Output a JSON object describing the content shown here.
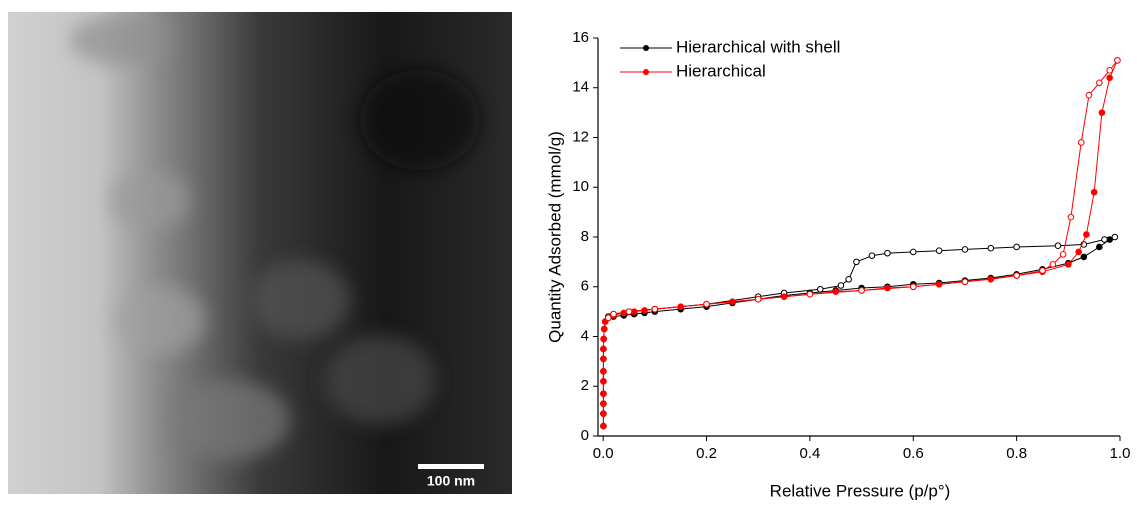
{
  "image": {
    "scale_bar_label": "100 nm"
  },
  "chart_data": {
    "type": "line",
    "x_label": "Relative Pressure (p/p°)",
    "y_label": "Quantity Adsorbed (mmol/g)",
    "xlim": [
      -0.01,
      1.0
    ],
    "ylim": [
      0,
      16
    ],
    "xticks": [
      {
        "value": 0,
        "label": "0.0"
      },
      0.2,
      0.4,
      0.6,
      0.8,
      {
        "value": 1,
        "label": "1.0"
      }
    ],
    "yticks": [
      0,
      2,
      4,
      6,
      8,
      10,
      12,
      14,
      16
    ],
    "legend": "top-left",
    "series": [
      {
        "name": "Hierarchical with shell",
        "color": "#000000",
        "adsorption": {
          "x": [
            0.0005,
            0.0005,
            0.0005,
            0.0005,
            0.0005,
            0.0005,
            0.0005,
            0.0005,
            0.001,
            0.002,
            0.004,
            0.01,
            0.02,
            0.04,
            0.06,
            0.08,
            0.1,
            0.15,
            0.2,
            0.25,
            0.3,
            0.35,
            0.4,
            0.45,
            0.5,
            0.55,
            0.6,
            0.65,
            0.7,
            0.75,
            0.8,
            0.85,
            0.9,
            0.93,
            0.96,
            0.98
          ],
          "values": [
            0.4,
            0.9,
            1.3,
            1.7,
            2.2,
            2.6,
            3.1,
            3.5,
            3.9,
            4.3,
            4.6,
            4.75,
            4.8,
            4.85,
            4.9,
            4.95,
            5.0,
            5.1,
            5.2,
            5.35,
            5.5,
            5.65,
            5.75,
            5.85,
            5.95,
            6.0,
            6.1,
            6.15,
            6.25,
            6.35,
            6.5,
            6.7,
            6.95,
            7.2,
            7.6,
            7.9
          ]
        },
        "desorption": {
          "x": [
            0.99,
            0.97,
            0.93,
            0.88,
            0.8,
            0.75,
            0.7,
            0.65,
            0.6,
            0.55,
            0.52,
            0.49,
            0.475,
            0.46,
            0.42,
            0.35,
            0.3,
            0.2,
            0.1,
            0.05,
            0.02,
            0.01
          ],
          "values": [
            8.0,
            7.9,
            7.7,
            7.65,
            7.6,
            7.55,
            7.5,
            7.45,
            7.4,
            7.35,
            7.25,
            7.0,
            6.3,
            6.05,
            5.9,
            5.75,
            5.6,
            5.3,
            5.1,
            5.0,
            4.9,
            4.8
          ]
        }
      },
      {
        "name": "Hierarchical",
        "color": "#ff0000",
        "adsorption": {
          "x": [
            0.0005,
            0.0005,
            0.0005,
            0.0005,
            0.0005,
            0.0005,
            0.0005,
            0.0005,
            0.001,
            0.002,
            0.004,
            0.01,
            0.02,
            0.04,
            0.06,
            0.08,
            0.1,
            0.15,
            0.2,
            0.25,
            0.3,
            0.35,
            0.4,
            0.45,
            0.5,
            0.55,
            0.6,
            0.65,
            0.7,
            0.75,
            0.8,
            0.85,
            0.9,
            0.92,
            0.935,
            0.95,
            0.965,
            0.98,
            0.995
          ],
          "values": [
            0.4,
            0.9,
            1.3,
            1.7,
            2.2,
            2.6,
            3.1,
            3.5,
            3.9,
            4.3,
            4.6,
            4.75,
            4.85,
            4.95,
            5.0,
            5.05,
            5.1,
            5.2,
            5.3,
            5.4,
            5.5,
            5.6,
            5.7,
            5.8,
            5.85,
            5.95,
            6.0,
            6.1,
            6.2,
            6.3,
            6.45,
            6.6,
            6.9,
            7.4,
            8.1,
            9.8,
            13.0,
            14.4,
            15.1
          ]
        },
        "desorption": {
          "x": [
            0.995,
            0.98,
            0.96,
            0.94,
            0.925,
            0.905,
            0.89,
            0.87,
            0.85,
            0.8,
            0.7,
            0.6,
            0.5,
            0.4,
            0.3,
            0.2,
            0.1,
            0.05,
            0.02,
            0.01
          ],
          "values": [
            15.1,
            14.7,
            14.2,
            13.7,
            11.8,
            8.8,
            7.3,
            6.9,
            6.65,
            6.45,
            6.2,
            6.0,
            5.85,
            5.7,
            5.5,
            5.3,
            5.1,
            5.0,
            4.9,
            4.75
          ]
        }
      }
    ]
  }
}
